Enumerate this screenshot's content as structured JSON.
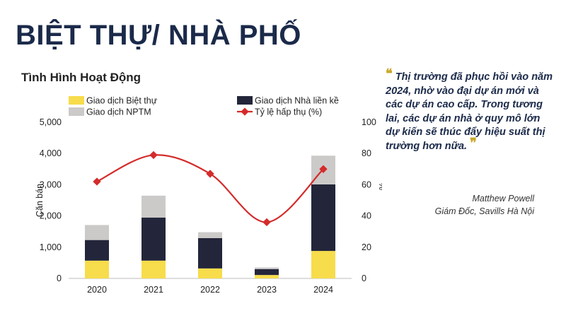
{
  "slide": {
    "title": "BIỆT THỰ/ NHÀ PHỐ"
  },
  "quote": {
    "open_mark": "❝",
    "text": "Thị trường đã phục hồi vào năm 2024, nhờ vào đại dự án mới và các dự án cao cấp. Trong tương lai, các dự án nhà ở quy mô lớn dự kiến sẽ thúc đẩy hiệu suất thị trường hơn nữa.",
    "close_mark": "❞",
    "author": "Matthew Powell",
    "author_title": "Giám Đốc,  Savills  Hà Nội"
  },
  "colors": {
    "villa": "#f7dc4b",
    "townhouse": "#23263a",
    "nptm": "#cccac9",
    "absorption": "#d42b2b",
    "quote_mark": "#c8a92a",
    "title": "#1b2a4a"
  },
  "chart_data": {
    "type": "bar",
    "stacked": true,
    "title": "Tình Hình Hoạt Động",
    "categories": [
      "2020",
      "2021",
      "2022",
      "2023",
      "2024"
    ],
    "series": [
      {
        "name": "Giao dịch Biệt thự",
        "kind": "bar",
        "color": "#f7dc4b",
        "values": [
          570,
          570,
          320,
          110,
          880
        ]
      },
      {
        "name": "Giao dịch Nhà liền kề",
        "kind": "bar",
        "color": "#23263a",
        "values": [
          660,
          1380,
          970,
          190,
          2130
        ]
      },
      {
        "name": "Giao dịch NPTM",
        "kind": "bar",
        "color": "#cccac9",
        "values": [
          480,
          700,
          190,
          50,
          920
        ]
      },
      {
        "name": "Tỷ lệ hấp thụ (%)",
        "kind": "line",
        "axis": "right",
        "color": "#d42b2b",
        "values": [
          62,
          79,
          67,
          36,
          70
        ]
      }
    ],
    "ylabel": "Căn bán",
    "y2label": "%",
    "ylim": [
      0,
      5000
    ],
    "y2lim": [
      0,
      100
    ],
    "yticks": [
      "0",
      "1,000",
      "2,000",
      "3,000",
      "4,000",
      "5,000"
    ],
    "y2ticks": [
      "0",
      "20",
      "40",
      "60",
      "80",
      "100"
    ],
    "legend_position": "top",
    "grid": false
  }
}
